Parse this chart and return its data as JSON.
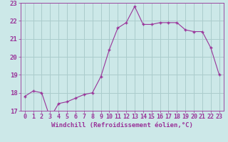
{
  "x": [
    0,
    1,
    2,
    3,
    4,
    5,
    6,
    7,
    8,
    9,
    10,
    11,
    12,
    13,
    14,
    15,
    16,
    17,
    18,
    19,
    20,
    21,
    22,
    23
  ],
  "y": [
    17.8,
    18.1,
    18.0,
    16.6,
    17.4,
    17.5,
    17.7,
    17.9,
    18.0,
    18.9,
    20.4,
    21.6,
    21.9,
    22.8,
    21.8,
    21.8,
    21.9,
    21.9,
    21.9,
    21.5,
    21.4,
    21.4,
    20.5,
    19.0
  ],
  "line_color": "#993399",
  "marker": "+",
  "marker_size": 3,
  "bg_color": "#cce8e8",
  "grid_color": "#aacccc",
  "xlabel": "Windchill (Refroidissement éolien,°C)",
  "xlabel_color": "#993399",
  "tick_color": "#993399",
  "label_color": "#993399",
  "ylim": [
    17,
    23
  ],
  "xlim": [
    -0.5,
    23.5
  ],
  "yticks": [
    17,
    18,
    19,
    20,
    21,
    22,
    23
  ],
  "xticks": [
    0,
    1,
    2,
    3,
    4,
    5,
    6,
    7,
    8,
    9,
    10,
    11,
    12,
    13,
    14,
    15,
    16,
    17,
    18,
    19,
    20,
    21,
    22,
    23
  ],
  "tick_fontsize": 6,
  "xlabel_fontsize": 6.5
}
